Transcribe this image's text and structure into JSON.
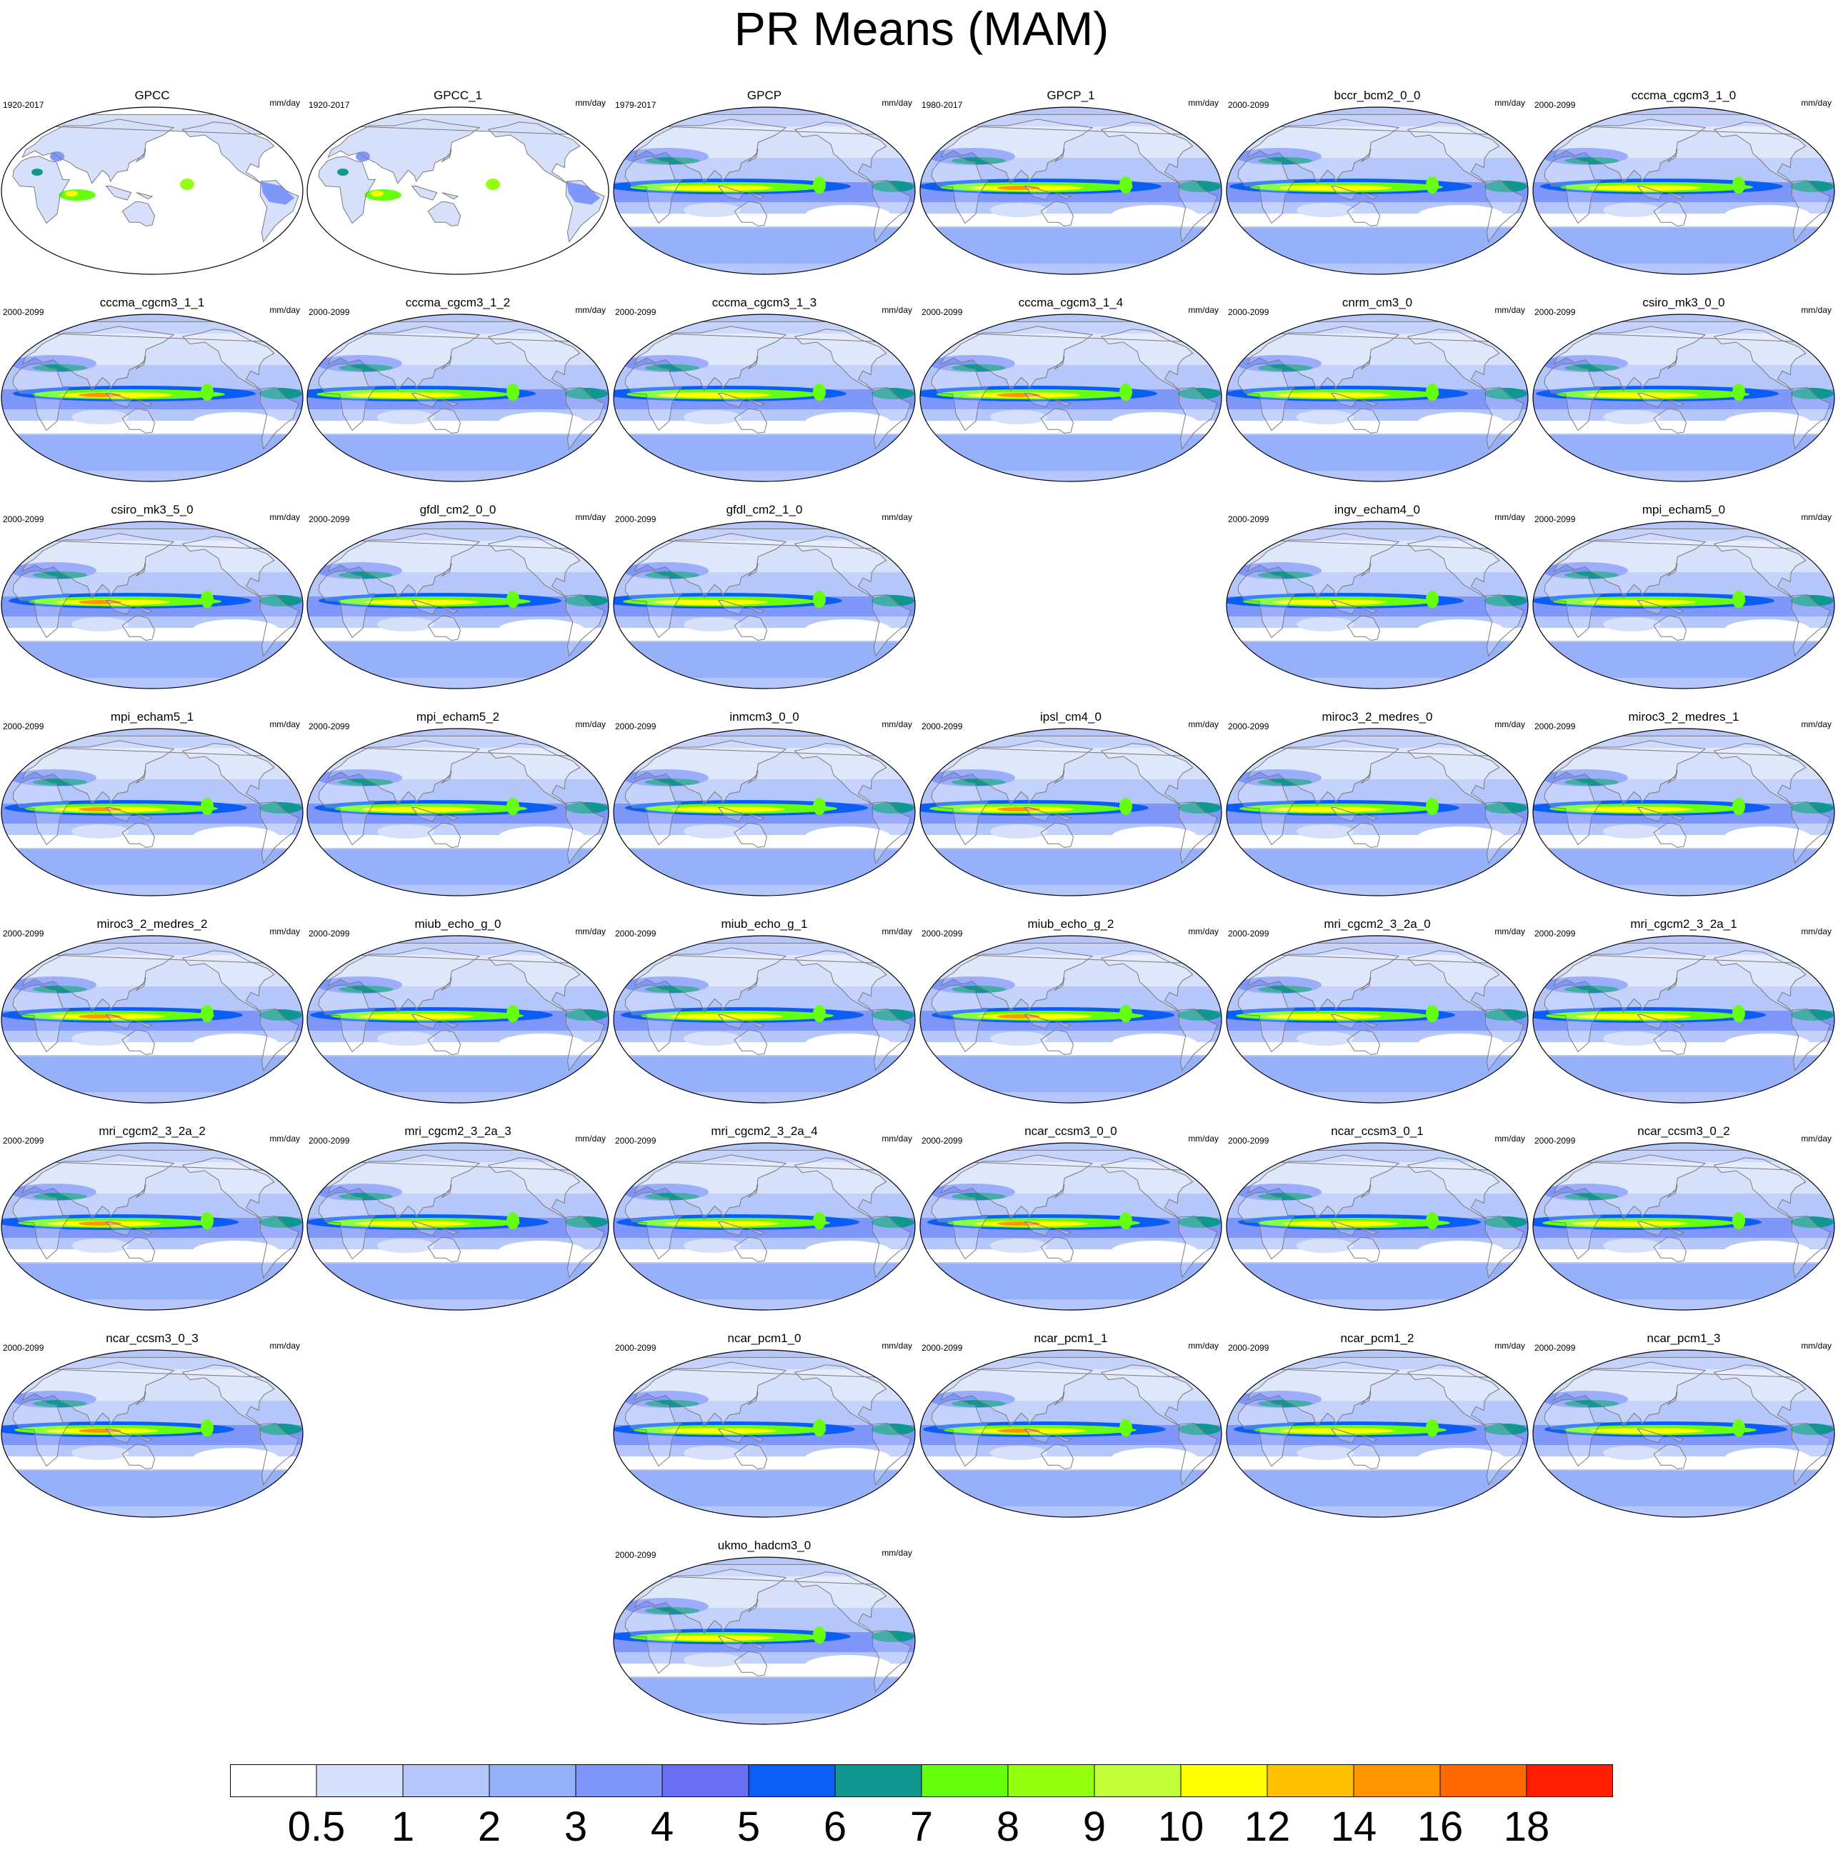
{
  "title": "PR Means (MAM)",
  "units": "mm/day",
  "panels": [
    {
      "name": "GPCC",
      "period": "1920-2017",
      "type": "obs"
    },
    {
      "name": "GPCC_1",
      "period": "1920-2017",
      "type": "obs"
    },
    {
      "name": "GPCP",
      "period": "1979-2017",
      "type": "model"
    },
    {
      "name": "GPCP_1",
      "period": "1980-2017",
      "type": "model"
    },
    {
      "name": "bccr_bcm2_0_0",
      "period": "2000-2099",
      "type": "model"
    },
    {
      "name": "cccma_cgcm3_1_0",
      "period": "2000-2099",
      "type": "model"
    },
    {
      "name": "cccma_cgcm3_1_1",
      "period": "2000-2099",
      "type": "model"
    },
    {
      "name": "cccma_cgcm3_1_2",
      "period": "2000-2099",
      "type": "model"
    },
    {
      "name": "cccma_cgcm3_1_3",
      "period": "2000-2099",
      "type": "model"
    },
    {
      "name": "cccma_cgcm3_1_4",
      "period": "2000-2099",
      "type": "model"
    },
    {
      "name": "cnrm_cm3_0",
      "period": "2000-2099",
      "type": "model"
    },
    {
      "name": "csiro_mk3_0_0",
      "period": "2000-2099",
      "type": "model"
    },
    {
      "name": "csiro_mk3_5_0",
      "period": "2000-2099",
      "type": "model"
    },
    {
      "name": "gfdl_cm2_0_0",
      "period": "2000-2099",
      "type": "model"
    },
    {
      "name": "gfdl_cm2_1_0",
      "period": "2000-2099",
      "type": "model"
    },
    null,
    {
      "name": "ingv_echam4_0",
      "period": "2000-2099",
      "type": "model"
    },
    {
      "name": "mpi_echam5_0",
      "period": "2000-2099",
      "type": "model"
    },
    {
      "name": "mpi_echam5_1",
      "period": "2000-2099",
      "type": "model"
    },
    {
      "name": "mpi_echam5_2",
      "period": "2000-2099",
      "type": "model"
    },
    {
      "name": "inmcm3_0_0",
      "period": "2000-2099",
      "type": "model"
    },
    {
      "name": "ipsl_cm4_0",
      "period": "2000-2099",
      "type": "model"
    },
    {
      "name": "miroc3_2_medres_0",
      "period": "2000-2099",
      "type": "model"
    },
    {
      "name": "miroc3_2_medres_1",
      "period": "2000-2099",
      "type": "model"
    },
    {
      "name": "miroc3_2_medres_2",
      "period": "2000-2099",
      "type": "model"
    },
    {
      "name": "miub_echo_g_0",
      "period": "2000-2099",
      "type": "model"
    },
    {
      "name": "miub_echo_g_1",
      "period": "2000-2099",
      "type": "model"
    },
    {
      "name": "miub_echo_g_2",
      "period": "2000-2099",
      "type": "model"
    },
    {
      "name": "mri_cgcm2_3_2a_0",
      "period": "2000-2099",
      "type": "model"
    },
    {
      "name": "mri_cgcm2_3_2a_1",
      "period": "2000-2099",
      "type": "model"
    },
    {
      "name": "mri_cgcm2_3_2a_2",
      "period": "2000-2099",
      "type": "model"
    },
    {
      "name": "mri_cgcm2_3_2a_3",
      "period": "2000-2099",
      "type": "model"
    },
    {
      "name": "mri_cgcm2_3_2a_4",
      "period": "2000-2099",
      "type": "model"
    },
    {
      "name": "ncar_ccsm3_0_0",
      "period": "2000-2099",
      "type": "model"
    },
    {
      "name": "ncar_ccsm3_0_1",
      "period": "2000-2099",
      "type": "model"
    },
    {
      "name": "ncar_ccsm3_0_2",
      "period": "2000-2099",
      "type": "model"
    },
    {
      "name": "ncar_ccsm3_0_3",
      "period": "2000-2099",
      "type": "model"
    },
    null,
    {
      "name": "ncar_pcm1_0",
      "period": "2000-2099",
      "type": "model"
    },
    {
      "name": "ncar_pcm1_1",
      "period": "2000-2099",
      "type": "model"
    },
    {
      "name": "ncar_pcm1_2",
      "period": "2000-2099",
      "type": "model"
    },
    {
      "name": "ncar_pcm1_3",
      "period": "2000-2099",
      "type": "model"
    },
    null,
    null,
    {
      "name": "ukmo_hadcm3_0",
      "period": "2000-2099",
      "type": "model"
    }
  ],
  "colorbar": {
    "labels": [
      "0.5",
      "1",
      "2",
      "3",
      "4",
      "5",
      "6",
      "7",
      "8",
      "9",
      "10",
      "12",
      "14",
      "16",
      "18"
    ],
    "colors": [
      "#ffffff",
      "#d6e0fa",
      "#b5c6fa",
      "#96b0fa",
      "#7f96fa",
      "#6a6ef5",
      "#0a5ef5",
      "#0f9890",
      "#66ff0e",
      "#96ff0e",
      "#c3ff38",
      "#ffff00",
      "#ffc000",
      "#ff9600",
      "#ff6a00",
      "#ff1e00"
    ]
  }
}
